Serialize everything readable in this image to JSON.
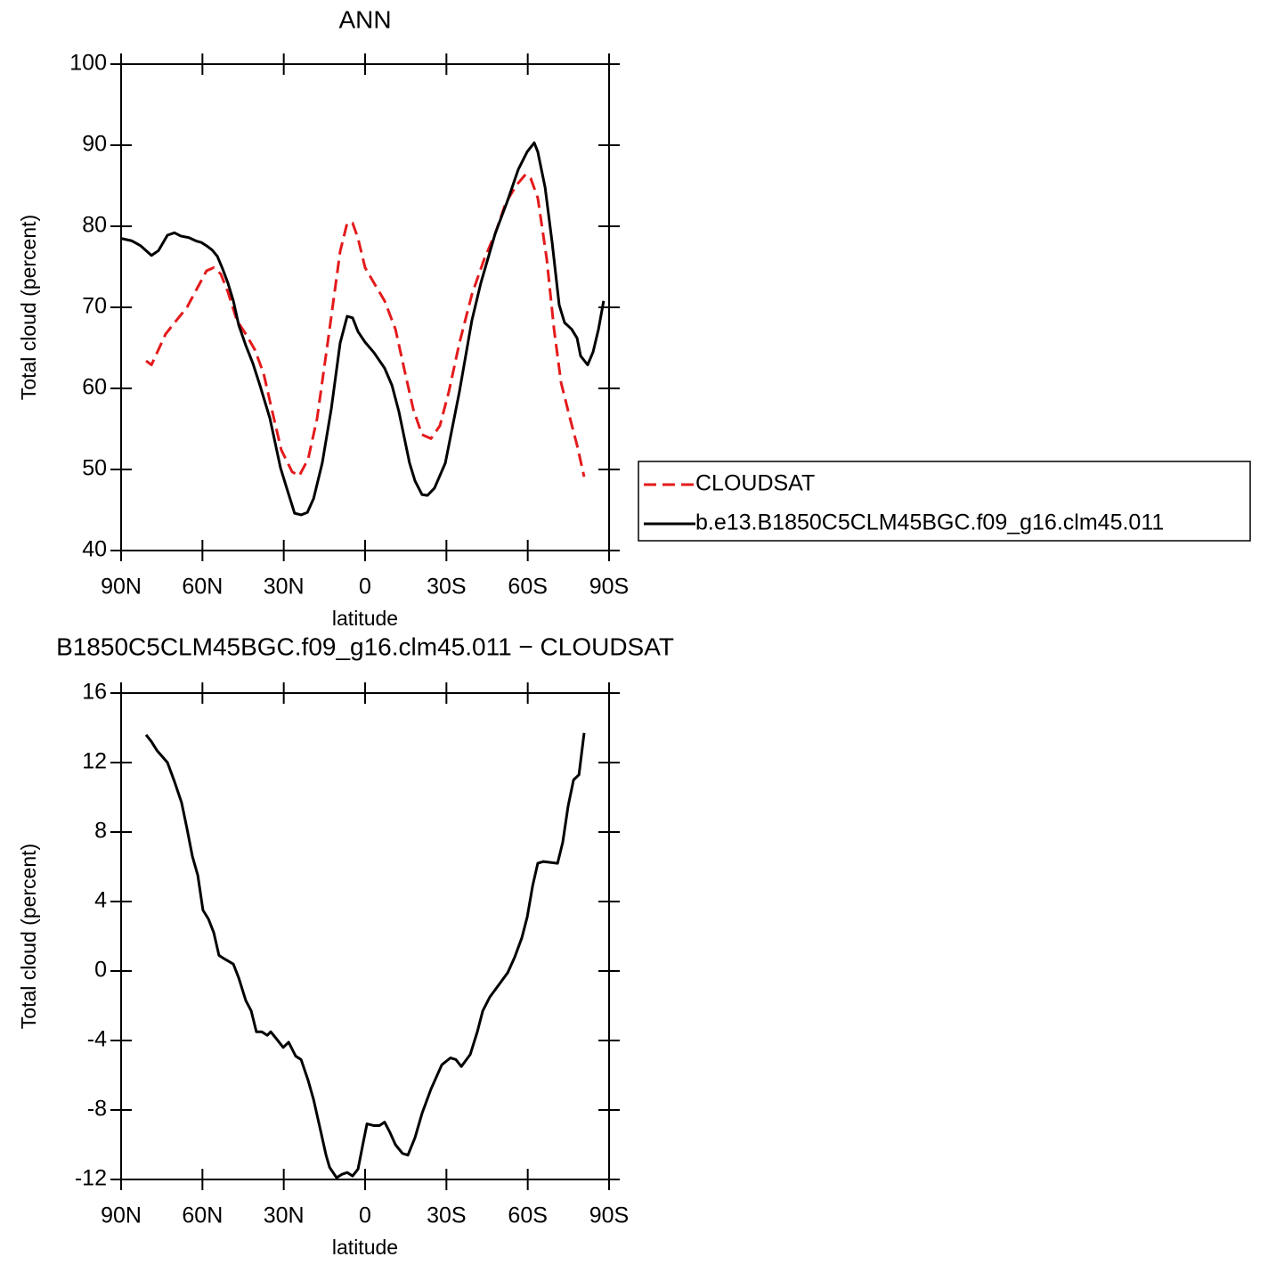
{
  "chart_data": [
    {
      "type": "line",
      "title": "ANN",
      "xlabel": "latitude",
      "ylabel": "Total cloud (percent)",
      "xlim": [
        90,
        -90
      ],
      "ylim": [
        40,
        100
      ],
      "xticks": [
        {
          "value": 90,
          "label": "90N"
        },
        {
          "value": 60,
          "label": "60N"
        },
        {
          "value": 30,
          "label": "30N"
        },
        0,
        {
          "value": -30,
          "label": "30S"
        },
        {
          "value": -60,
          "label": "60S"
        },
        {
          "value": -90,
          "label": "90S"
        }
      ],
      "yticks": [
        40,
        50,
        60,
        70,
        80,
        90,
        100
      ],
      "legend": "right",
      "series": [
        {
          "name": "CLOUDSAT",
          "color": "#e41a1c",
          "dash": "dashed",
          "x": [
            80.8,
            78.8,
            76.2,
            73.6,
            70.3,
            65.7,
            61.7,
            58.5,
            55.8,
            53.2,
            50.6,
            47.3,
            44,
            40.7,
            37.4,
            34.2,
            30.9,
            26.9,
            24.3,
            21,
            17.7,
            13.1,
            9.2,
            6.6,
            4.6,
            2.6,
            0,
            -3.3,
            -7.2,
            -11.2,
            -14.5,
            -17.8,
            -21,
            -24.3,
            -27.6,
            -30.9,
            -34.8,
            -39.4,
            -44,
            -48,
            -51.9,
            -55.9,
            -59.2,
            -61.1,
            -63.7,
            -67,
            -69.7,
            -72.3,
            -75.6,
            -78.2,
            -80.8
          ],
          "values": [
            63.4,
            62.9,
            64.8,
            66.7,
            68.1,
            70.0,
            72.5,
            74.5,
            74.9,
            74.1,
            71.9,
            68.4,
            66.7,
            64.8,
            61.8,
            57.1,
            52.4,
            49.7,
            49.2,
            51.3,
            56.3,
            67.3,
            76.9,
            80.4,
            80.4,
            78.5,
            74.9,
            73.0,
            70.8,
            67.3,
            62.3,
            57.4,
            54.3,
            53.8,
            55.4,
            59.6,
            65.6,
            71.6,
            76.0,
            79.1,
            82.9,
            85.1,
            86.4,
            85.9,
            83.5,
            76.0,
            67.3,
            60.7,
            56.3,
            53.0,
            49.1
          ]
        },
        {
          "name": "b.e13.B1850C5CLM45BGC.f09_g16.clm45.011",
          "color": "#000000",
          "dash": "solid",
          "x": [
            90,
            86,
            82.8,
            78.8,
            76.2,
            72.9,
            70.3,
            68,
            65,
            62.4,
            60.4,
            58.5,
            56.5,
            54.5,
            52.5,
            50.6,
            48.6,
            46.6,
            44,
            41.4,
            38.8,
            35.1,
            31.2,
            28.9,
            26,
            23.6,
            21.3,
            19,
            15.8,
            12.5,
            9.2,
            6.6,
            4.6,
            2.6,
            0,
            -3.3,
            -7.2,
            -9.9,
            -12.5,
            -16.4,
            -18.4,
            -21,
            -23,
            -25.6,
            -29.6,
            -34.8,
            -39.4,
            -42.7,
            -48,
            -52.6,
            -56.5,
            -59.8,
            -62.4,
            -63.7,
            -66.4,
            -69,
            -71.6,
            -73.6,
            -76.2,
            -78.2,
            -79.5,
            -82.1,
            -84.1,
            -86.1,
            -88
          ],
          "values": [
            78.5,
            78.2,
            77.6,
            76.4,
            77.0,
            78.9,
            79.2,
            78.8,
            78.6,
            78.2,
            78.0,
            77.6,
            77.1,
            76.3,
            74.7,
            73.0,
            70.8,
            67.8,
            65.3,
            63.1,
            60.4,
            56.3,
            50.2,
            47.7,
            44.6,
            44.4,
            44.7,
            46.4,
            50.8,
            57.4,
            65.6,
            68.9,
            68.7,
            67.0,
            65.7,
            64.4,
            62.5,
            60.4,
            57.1,
            50.8,
            48.6,
            46.9,
            46.8,
            47.7,
            50.8,
            59.6,
            68.4,
            73.0,
            79.1,
            83.2,
            87.0,
            89.2,
            90.3,
            89.2,
            84.8,
            78.0,
            70.3,
            68.1,
            67.3,
            66.2,
            64.0,
            62.9,
            64.5,
            67.3,
            70.8
          ]
        }
      ]
    },
    {
      "type": "line",
      "title": "B1850C5CLM45BGC.f09_g16.clm45.011 − CLOUDSAT",
      "xlabel": "latitude",
      "ylabel": "Total cloud (percent)",
      "xlim": [
        90,
        -90
      ],
      "ylim": [
        -12,
        16
      ],
      "xticks": [
        {
          "value": 90,
          "label": "90N"
        },
        {
          "value": 60,
          "label": "60N"
        },
        {
          "value": 30,
          "label": "30N"
        },
        0,
        {
          "value": -30,
          "label": "30S"
        },
        {
          "value": -60,
          "label": "60S"
        },
        {
          "value": -90,
          "label": "90S"
        }
      ],
      "yticks": [
        -12,
        -8,
        -4,
        0,
        4,
        8,
        12,
        16
      ],
      "color": "#000000",
      "x": [
        80.8,
        78.8,
        76.8,
        72.9,
        70.3,
        67.7,
        65.7,
        63.7,
        61.7,
        59.8,
        57.8,
        55.8,
        53.9,
        51.9,
        48.6,
        46.6,
        44,
        42,
        40.1,
        38.1,
        36.1,
        34.8,
        32.2,
        30.2,
        28.2,
        25.6,
        23.6,
        21,
        19,
        16.4,
        14.4,
        13.1,
        10.5,
        8.5,
        6.6,
        4.6,
        2.6,
        0.6,
        -0.7,
        -3.3,
        -5.3,
        -7.2,
        -9.2,
        -11.2,
        -13.8,
        -15.8,
        -18.4,
        -21,
        -24.3,
        -28.3,
        -31.5,
        -33.5,
        -35.5,
        -38.8,
        -41.4,
        -43.4,
        -46,
        -49.3,
        -52.6,
        -55.2,
        -57.8,
        -59.8,
        -61.8,
        -63.7,
        -65.7,
        -71,
        -72.9,
        -74.9,
        -76.9,
        -78.9,
        -80.8
      ],
      "values": [
        13.6,
        13.2,
        12.7,
        12.0,
        10.9,
        9.7,
        8.2,
        6.6,
        5.5,
        3.5,
        3.0,
        2.2,
        0.9,
        0.7,
        0.4,
        -0.4,
        -1.7,
        -2.3,
        -3.5,
        -3.5,
        -3.7,
        -3.5,
        -4.0,
        -4.4,
        -4.1,
        -4.9,
        -5.1,
        -6.3,
        -7.4,
        -9.2,
        -10.6,
        -11.3,
        -11.9,
        -11.7,
        -11.6,
        -11.8,
        -11.4,
        -9.8,
        -8.8,
        -8.9,
        -8.9,
        -8.7,
        -9.3,
        -10.0,
        -10.5,
        -10.6,
        -9.6,
        -8.2,
        -6.8,
        -5.4,
        -5.0,
        -5.1,
        -5.5,
        -4.8,
        -3.5,
        -2.3,
        -1.5,
        -0.8,
        -0.1,
        0.8,
        1.9,
        3.1,
        4.9,
        6.2,
        6.3,
        6.2,
        7.4,
        9.5,
        11.0,
        11.3,
        13.7
      ]
    }
  ]
}
